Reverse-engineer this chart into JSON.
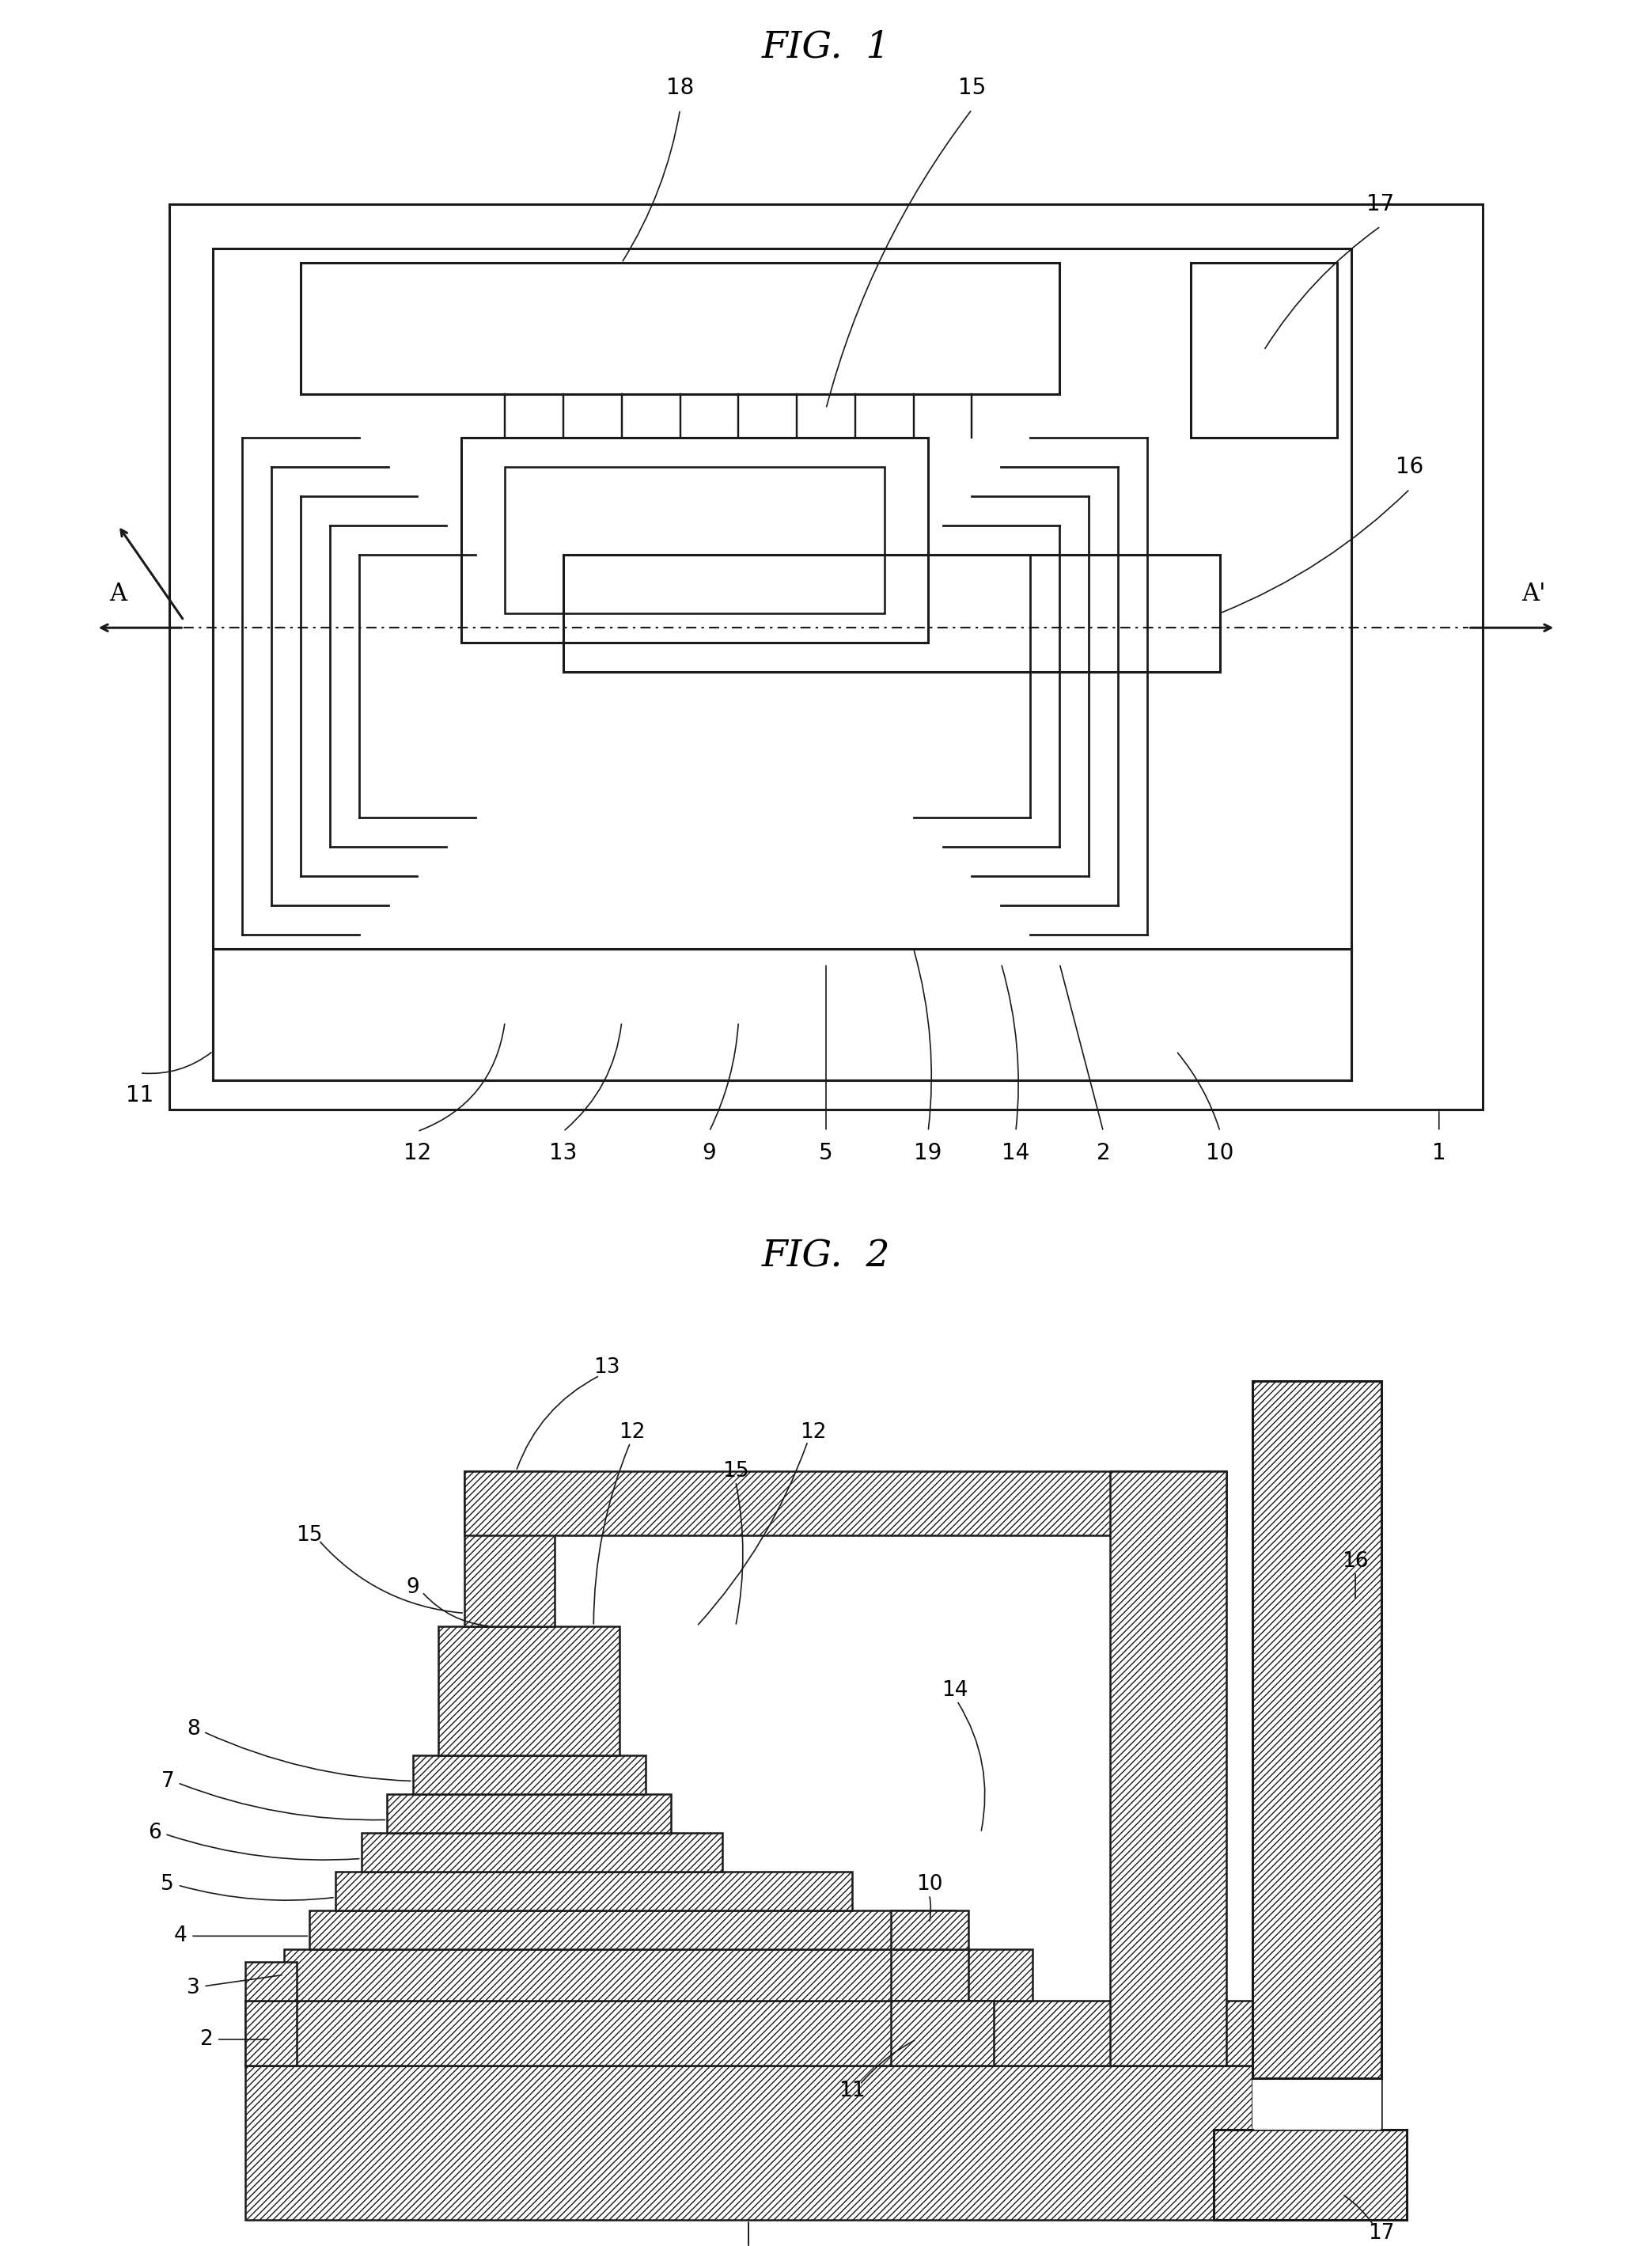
{
  "fig1_title": "FIG.  1",
  "fig2_title": "FIG.  2",
  "bg_color": "#ffffff",
  "line_color": "#1a1a1a",
  "label_fontsize": 20,
  "title_fontsize": 34
}
